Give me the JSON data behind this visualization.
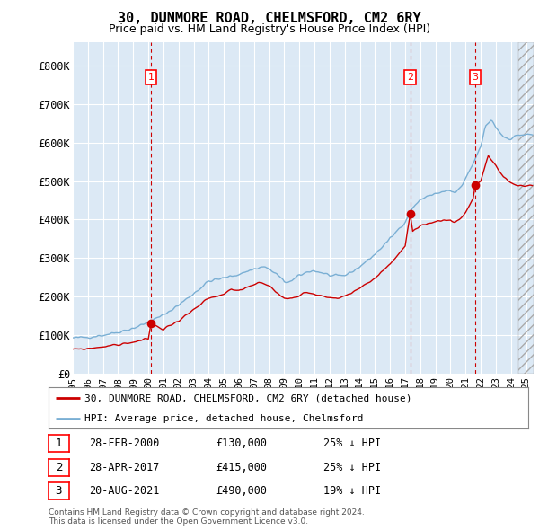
{
  "title": "30, DUNMORE ROAD, CHELMSFORD, CM2 6RY",
  "subtitle": "Price paid vs. HM Land Registry's House Price Index (HPI)",
  "ylim": [
    0,
    860000
  ],
  "yticks": [
    0,
    100000,
    200000,
    300000,
    400000,
    500000,
    600000,
    700000,
    800000
  ],
  "ytick_labels": [
    "£0",
    "£100K",
    "£200K",
    "£300K",
    "£400K",
    "£500K",
    "£600K",
    "£700K",
    "£800K"
  ],
  "background_color": "#dce9f5",
  "grid_color": "#c8d8e8",
  "red_line_color": "#cc0000",
  "blue_line_color": "#7aafd4",
  "vline_color": "#cc0000",
  "legend_label_red": "30, DUNMORE ROAD, CHELMSFORD, CM2 6RY (detached house)",
  "legend_label_blue": "HPI: Average price, detached house, Chelmsford",
  "transactions": [
    {
      "num": 1,
      "date": "28-FEB-2000",
      "price": 130000,
      "discount": "25% ↓ HPI",
      "year": 2000.17
    },
    {
      "num": 2,
      "date": "28-APR-2017",
      "price": 415000,
      "discount": "25% ↓ HPI",
      "year": 2017.33
    },
    {
      "num": 3,
      "date": "20-AUG-2021",
      "price": 490000,
      "discount": "19% ↓ HPI",
      "year": 2021.64
    }
  ],
  "copyright_text": "Contains HM Land Registry data © Crown copyright and database right 2024.\nThis data is licensed under the Open Government Licence v3.0.",
  "xlim": [
    1995.0,
    2025.5
  ],
  "hatch_start": 2024.5,
  "x_tick_years": [
    1995,
    1996,
    1997,
    1998,
    1999,
    2000,
    2001,
    2002,
    2003,
    2004,
    2005,
    2006,
    2007,
    2008,
    2009,
    2010,
    2011,
    2012,
    2013,
    2014,
    2015,
    2016,
    2017,
    2018,
    2019,
    2020,
    2021,
    2022,
    2023,
    2024,
    2025
  ]
}
